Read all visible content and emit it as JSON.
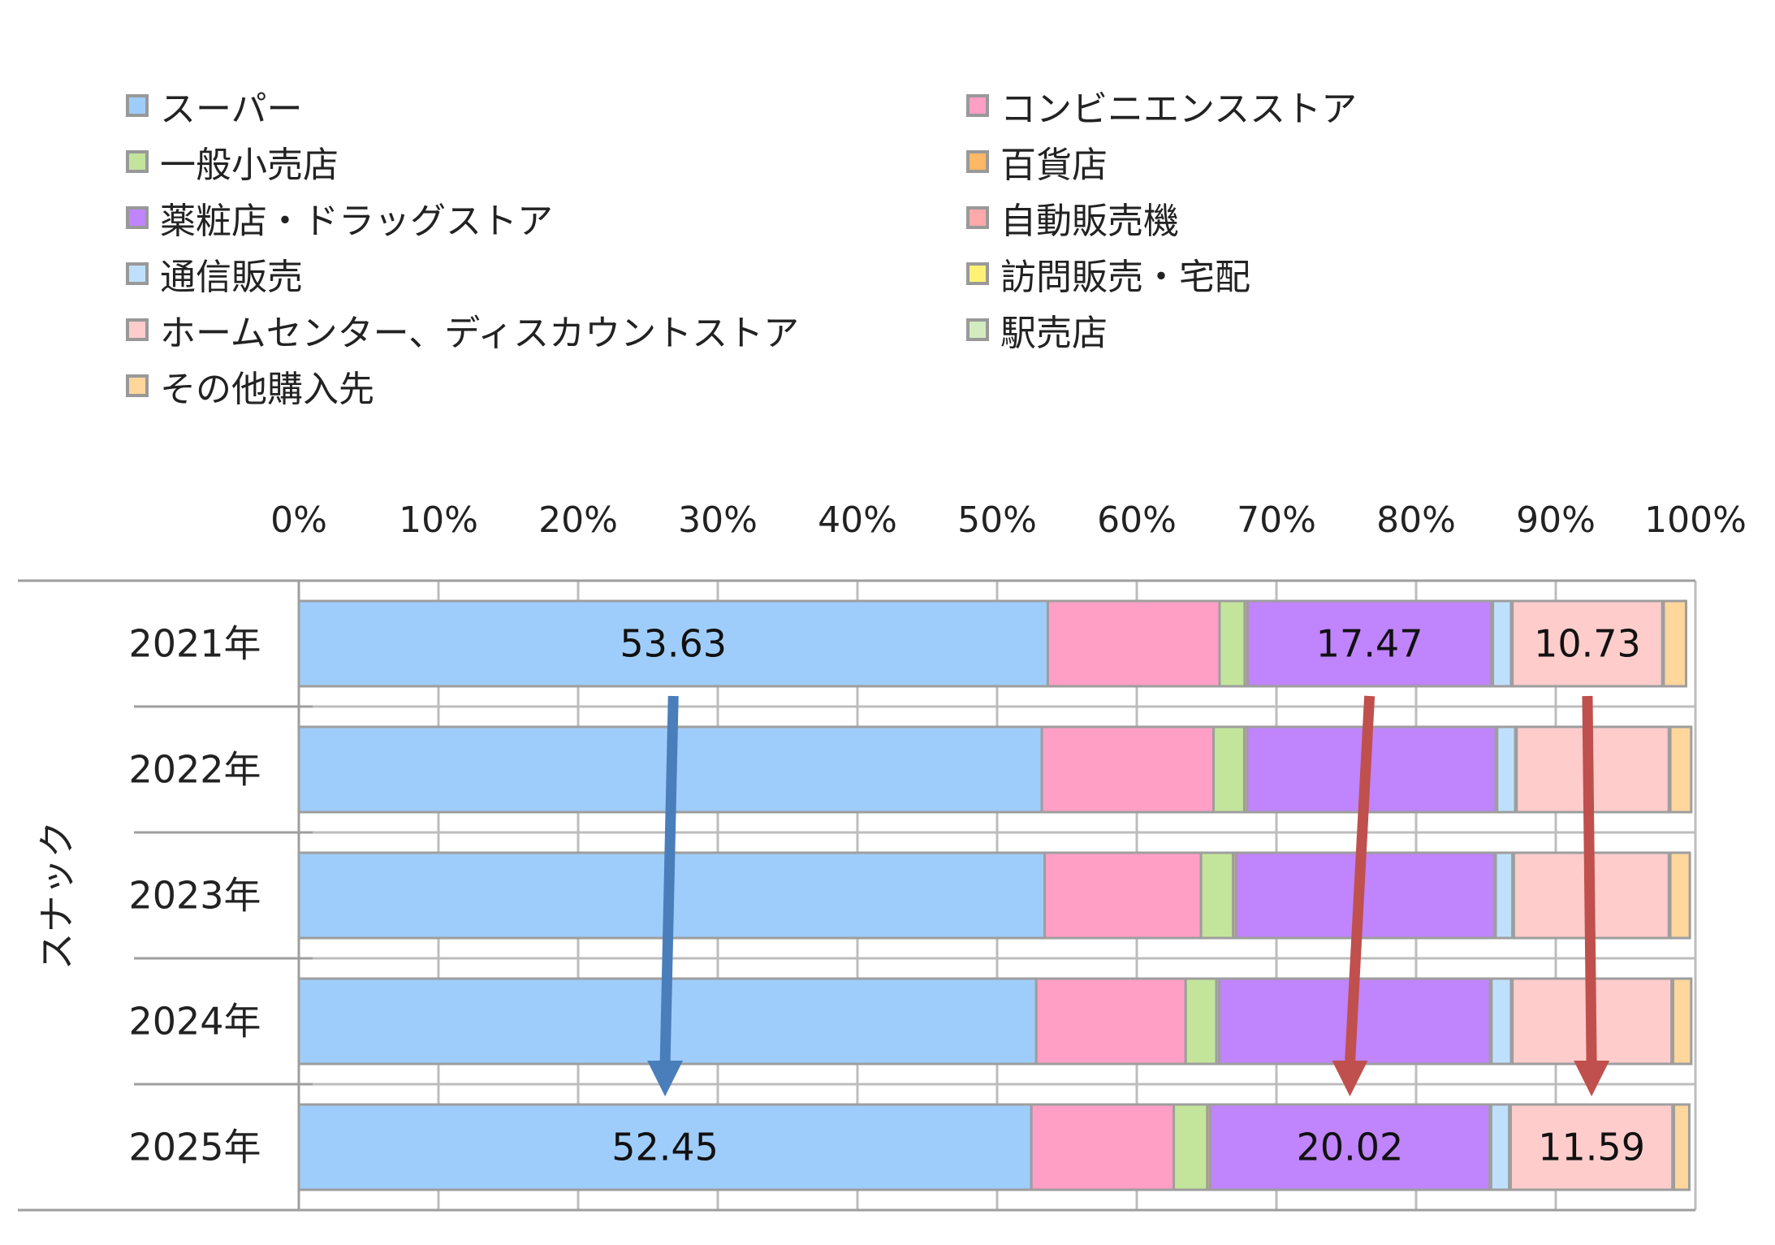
{
  "chart_data": {
    "type": "bar",
    "orientation": "horizontal",
    "stacked": "percent",
    "group_label": "スナック",
    "categories": [
      "2021年",
      "2022年",
      "2023年",
      "2024年",
      "2025年"
    ],
    "xlim": [
      0,
      100
    ],
    "x_ticks": [
      "0%",
      "10%",
      "20%",
      "30%",
      "40%",
      "50%",
      "60%",
      "70%",
      "80%",
      "90%",
      "100%"
    ],
    "grid": true,
    "legend_position": "top",
    "series": [
      {
        "name": "スーパー",
        "color": "#9fcdfb",
        "values": [
          53.63,
          53.2,
          53.4,
          52.8,
          52.45
        ]
      },
      {
        "name": "コンビニエンスストア",
        "color": "#ff9fc5",
        "values": [
          12.3,
          12.3,
          11.2,
          10.7,
          10.2
        ]
      },
      {
        "name": "一般小売店",
        "color": "#c3e59b",
        "values": [
          1.8,
          2.2,
          2.3,
          2.2,
          2.4
        ]
      },
      {
        "name": "百貨店",
        "color": "#ffb865",
        "values": [
          0.2,
          0.2,
          0.2,
          0.2,
          0.2
        ]
      },
      {
        "name": "薬粧店・ドラッグストア",
        "color": "#c084fc",
        "values": [
          17.47,
          17.8,
          18.5,
          19.4,
          20.02
        ]
      },
      {
        "name": "自動販売機",
        "color": "#ffaaaa",
        "values": [
          0.1,
          0.1,
          0.1,
          0.1,
          0.1
        ]
      },
      {
        "name": "通信販売",
        "color": "#bfe0fd",
        "values": [
          1.3,
          1.3,
          1.2,
          1.4,
          1.3
        ]
      },
      {
        "name": "訪問販売・宅配",
        "color": "#fff176",
        "values": [
          0.1,
          0.1,
          0.1,
          0.1,
          0.1
        ]
      },
      {
        "name": "ホームセンター、ディスカウントストア",
        "color": "#ffcccc",
        "values": [
          10.73,
          10.9,
          11.1,
          11.4,
          11.59
        ]
      },
      {
        "name": "駅売店",
        "color": "#d4ebc0",
        "values": [
          0.1,
          0.1,
          0.1,
          0.1,
          0.1
        ]
      },
      {
        "name": "その他購入先",
        "color": "#ffd69c",
        "values": [
          1.6,
          1.5,
          1.4,
          1.3,
          1.1
        ]
      }
    ],
    "data_labels": [
      {
        "category": "2021年",
        "series": "スーパー",
        "text": "53.63"
      },
      {
        "category": "2021年",
        "series": "薬粧店・ドラッグストア",
        "text": "17.47"
      },
      {
        "category": "2021年",
        "series": "ホームセンター、ディスカウントストア",
        "text": "10.73"
      },
      {
        "category": "2025年",
        "series": "スーパー",
        "text": "52.45"
      },
      {
        "category": "2025年",
        "series": "薬粧店・ドラッグストア",
        "text": "20.02"
      },
      {
        "category": "2025年",
        "series": "ホームセンター、ディスカウントストア",
        "text": "11.59"
      }
    ],
    "trend_arrows": [
      {
        "series": "スーパー",
        "from": "2021年",
        "to": "2025年",
        "direction": "down",
        "color": "#4a7ebb"
      },
      {
        "series": "薬粧店・ドラッグストア",
        "from": "2021年",
        "to": "2025年",
        "direction": "down",
        "color": "#c0504d"
      },
      {
        "series": "ホームセンター、ディスカウントストア",
        "from": "2021年",
        "to": "2025年",
        "direction": "down",
        "color": "#c0504d"
      }
    ]
  }
}
